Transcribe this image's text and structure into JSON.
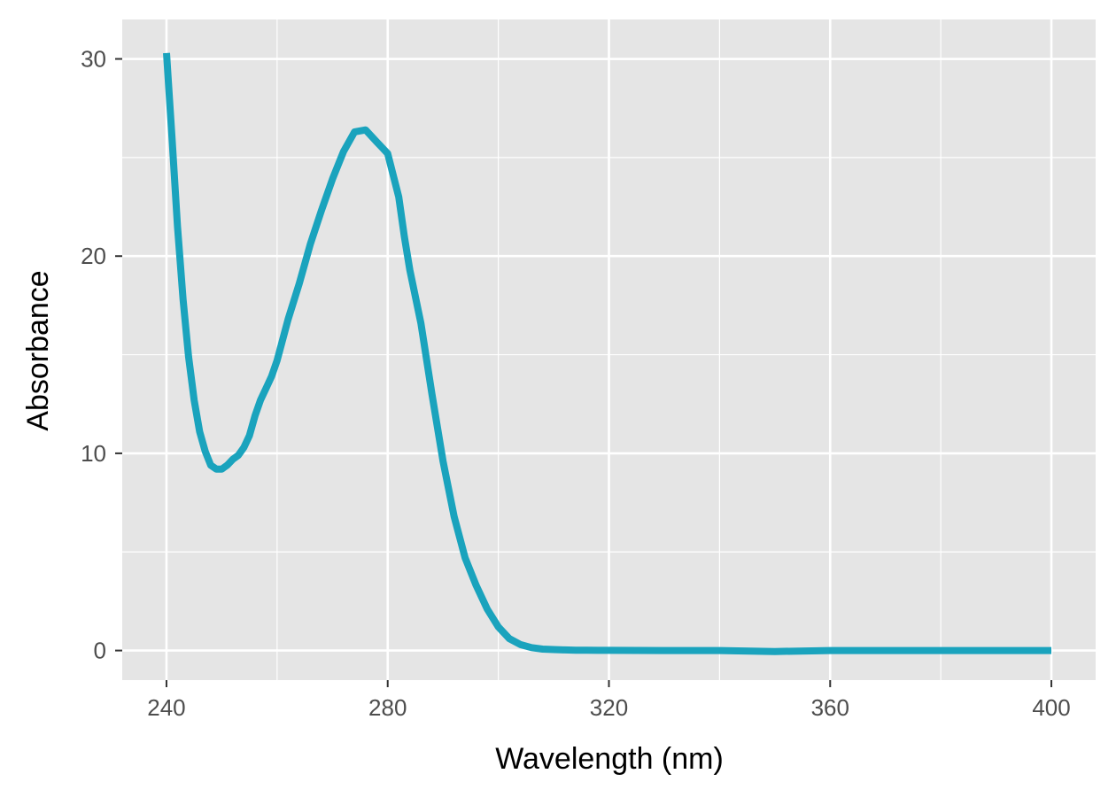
{
  "chart_data": {
    "type": "line",
    "title": "",
    "xlabel": "Wavelength (nm)",
    "ylabel": "Absorbance",
    "xlim": [
      232,
      408
    ],
    "ylim": [
      -1.5,
      32
    ],
    "x_ticks": [
      240,
      280,
      320,
      360,
      400
    ],
    "y_ticks": [
      0,
      10,
      20,
      30
    ],
    "grid": true,
    "panel_background": "#e5e5e5",
    "grid_color": "#ffffff",
    "line_color": "#1aa3bd",
    "series": [
      {
        "x": [
          240,
          241,
          242,
          243,
          244,
          245,
          246,
          247,
          248,
          249,
          250,
          251,
          252,
          253,
          254,
          255,
          256,
          257,
          258,
          259,
          260,
          262,
          264,
          266,
          268,
          270,
          272,
          274,
          276,
          278,
          279,
          280,
          282,
          283,
          284,
          286,
          288,
          290,
          292,
          294,
          296,
          298,
          300,
          302,
          304,
          306,
          308,
          310,
          312,
          314,
          316,
          318,
          320,
          330,
          340,
          350,
          360,
          370,
          380,
          390,
          400
        ],
        "y": [
          30.3,
          26.0,
          21.5,
          17.8,
          14.9,
          12.7,
          11.1,
          10.1,
          9.4,
          9.2,
          9.2,
          9.4,
          9.7,
          9.9,
          10.3,
          10.9,
          11.9,
          12.7,
          13.3,
          13.9,
          14.7,
          16.8,
          18.6,
          20.6,
          22.3,
          23.9,
          25.3,
          26.3,
          26.4,
          25.8,
          25.5,
          25.2,
          23.0,
          21.0,
          19.3,
          16.6,
          13.0,
          9.6,
          6.8,
          4.7,
          3.3,
          2.1,
          1.2,
          0.6,
          0.3,
          0.15,
          0.07,
          0.05,
          0.03,
          0.02,
          0.02,
          0.01,
          0.01,
          0.0,
          0.0,
          -0.05,
          0.0,
          0.0,
          0.0,
          0.0,
          0.0
        ]
      }
    ]
  }
}
